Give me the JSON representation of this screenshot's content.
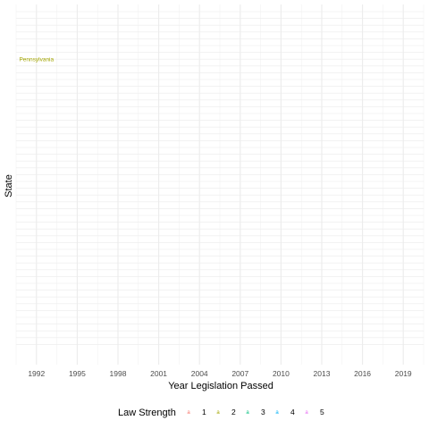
{
  "chart_data": {
    "type": "scatter",
    "title": "",
    "xlabel": "Year Legislation Passed",
    "ylabel": "State",
    "xlim": [
      1990.5,
      2020.5
    ],
    "x_ticks": [
      1992,
      1995,
      1998,
      2001,
      2004,
      2007,
      2010,
      2013,
      2016,
      2019
    ],
    "y_row_count": 50,
    "grid": true,
    "points": [
      {
        "label": "Pennsylvania",
        "x": 1992,
        "row": 7,
        "strength": 2
      }
    ],
    "legend": {
      "title": "Law Strength",
      "position": "bottom",
      "key_glyph": "a",
      "items": [
        {
          "label": "1",
          "color": "#F8766D"
        },
        {
          "label": "2",
          "color": "#A3A500"
        },
        {
          "label": "3",
          "color": "#00BF7D"
        },
        {
          "label": "4",
          "color": "#00B0F6"
        },
        {
          "label": "5",
          "color": "#E76BF3"
        }
      ]
    }
  }
}
